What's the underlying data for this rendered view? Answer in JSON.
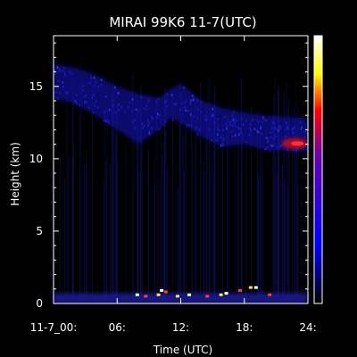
{
  "chart_data": {
    "type": "heatmap",
    "title": "MIRAI 99K6 11-7(UTC)",
    "xlabel": "Time (UTC)",
    "ylabel": "Height (km)",
    "xlim": [
      0,
      24
    ],
    "ylim": [
      0,
      18.5
    ],
    "x_ticks": [
      {
        "value": 0,
        "label": "11-7_00:"
      },
      {
        "value": 6,
        "label": "06:"
      },
      {
        "value": 12,
        "label": "12:"
      },
      {
        "value": 18,
        "label": "18:"
      },
      {
        "value": 24,
        "label": "24:"
      }
    ],
    "y_ticks": [
      {
        "value": 0,
        "label": "0"
      },
      {
        "value": 5,
        "label": "5"
      },
      {
        "value": 10,
        "label": "10"
      },
      {
        "value": 15,
        "label": "15"
      }
    ],
    "colorbar": {
      "colors": [
        "#000000",
        "#0000ff",
        "#ff0000",
        "#ffff00",
        "#ffffff"
      ],
      "tick_labels": []
    },
    "features": {
      "cirrus_layer_top_km": [
        16.5,
        16.3,
        15.8,
        15.0,
        14.5,
        14.2,
        14.8,
        15.2,
        14.0,
        13.5,
        13.2,
        13.0,
        12.8
      ],
      "cirrus_layer_base_km": [
        14.2,
        13.8,
        13.0,
        12.0,
        11.0,
        12.0,
        12.8,
        12.5,
        11.5,
        10.8,
        11.0,
        10.6,
        10.5
      ],
      "time_h": [
        0,
        2,
        4,
        6,
        8,
        10,
        11,
        12,
        14,
        16,
        18,
        20,
        24
      ],
      "strong_echo_cluster": {
        "time_h": [
          21.5,
          24
        ],
        "height_km": [
          10.6,
          11.5
        ]
      },
      "boundary_layer_echo": {
        "time_h": [
          0,
          24
        ],
        "height_km": [
          0,
          0.7
        ]
      },
      "low_cloud_echoes": [
        {
          "time_h": 7.9,
          "height_km": 0.6
        },
        {
          "time_h": 8.7,
          "height_km": 0.5
        },
        {
          "time_h": 9.9,
          "height_km": 0.6
        },
        {
          "time_h": 10.2,
          "height_km": 0.9
        },
        {
          "time_h": 10.6,
          "height_km": 0.8
        },
        {
          "time_h": 11.7,
          "height_km": 0.5
        },
        {
          "time_h": 12.8,
          "height_km": 0.6
        },
        {
          "time_h": 14.5,
          "height_km": 0.5
        },
        {
          "time_h": 15.8,
          "height_km": 0.6
        },
        {
          "time_h": 16.3,
          "height_km": 0.7
        },
        {
          "time_h": 17.6,
          "height_km": 0.9
        },
        {
          "time_h": 18.6,
          "height_km": 1.1
        },
        {
          "time_h": 19.1,
          "height_km": 1.1
        },
        {
          "time_h": 20.4,
          "height_km": 0.6
        }
      ]
    },
    "grid": false,
    "legend": "colorbar-right"
  }
}
